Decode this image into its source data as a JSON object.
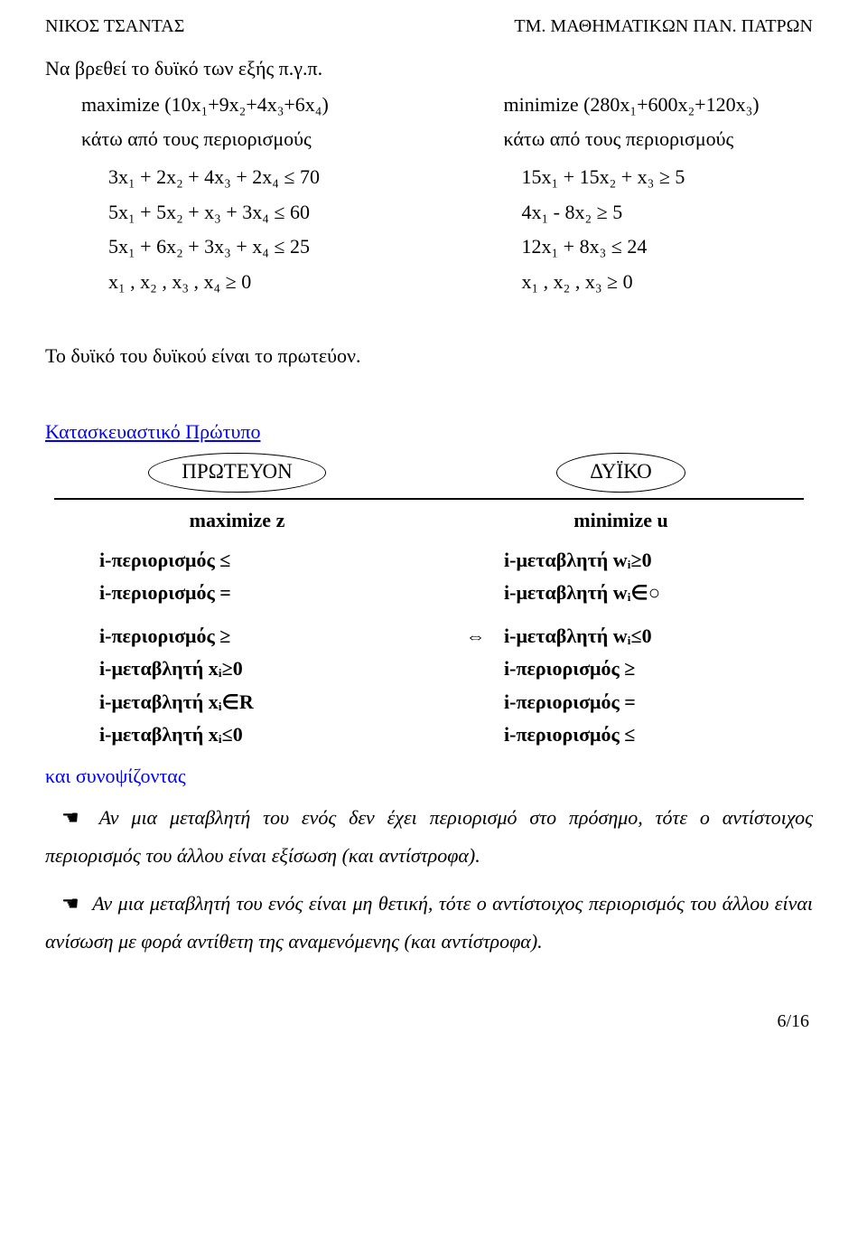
{
  "header": {
    "left": "ΝΙΚΟΣ ΤΣΑΝΤΑΣ",
    "right": "ΤΜ. ΜΑΘΗΜΑΤΙΚΩΝ ΠΑΝ. ΠΑΤΡΩΝ"
  },
  "intro": "Να βρεθεί το δυϊκό των εξής π.γ.π.",
  "primal": {
    "objective": "maximize (10x₁+9x₂+4x₃+6x₄)",
    "sub": "κάτω από τους περιορισμούς",
    "c1": "3x₁ + 2x₂ + 4x₃ + 2x₄ ≤  70",
    "c2": "5x₁ + 5x₂ +   x₃ + 3x₄ ≤  60",
    "c3": "5x₁ + 6x₂ + 3x₃ +   x₄ ≤  25",
    "c4": "  x₁ ,   x₂ ,   x₃ ,   x₄ ≥   0"
  },
  "dual": {
    "objective": "minimize (280x₁+600x₂+120x₃)",
    "sub": "κάτω από τους περιορισμούς",
    "c1": "15x₁ + 15x₂ +   x₃  ≥   5",
    "c2": "  4x₁ -   8x₂           ≥   5",
    "c3": "12x₁ +          8x₃ ≤ 24",
    "c4": "   x₁ ,    x₂ ,    x₃ ≥   0"
  },
  "mid": "Το δυϊκό του δυϊκού είναι το πρωτεύον.",
  "schema": {
    "title": "Κατασκευαστικό Πρώτυπο",
    "left_bubble": "ΠΡΩΤΕΥΟΝ",
    "right_bubble": "ΔΥΪΚΟ",
    "left_opt": "maximize z",
    "right_opt": "minimize u",
    "rows": {
      "l1": "i-περιορισμός ≤",
      "r1": "i-μεταβλητή wᵢ≥0",
      "l2": "i-περιορισμός =",
      "r2": "i-μεταβλητή wᵢ∈○",
      "l3": "i-περιορισμός ≥",
      "m3": "⇔",
      "r3": "i-μεταβλητή wᵢ≤0",
      "l4": "i-μεταβλητή xᵢ≥0",
      "r4": "i-περιορισμός ≥",
      "l5": "i-μεταβλητή xᵢ∈R",
      "r5": "i-περιορισμός =",
      "l6": "i-μεταβλητή xᵢ≤0",
      "r6": "i-περιορισμός ≤"
    }
  },
  "summary": {
    "title": "και συνοψίζοντας",
    "b1": "Αν μια μεταβλητή του ενός δεν έχει περιορισμό στο πρόσημο, τότε ο αντίστοιχος περιορισμός του άλλου είναι εξίσωση (και αντίστροφα).",
    "b2": "Αν μια μεταβλητή του ενός είναι μη θετική, τότε ο αντίστοιχος περιο­ρισμός του άλλου είναι ανίσωση με φορά αντίθετη της αναμενόμενης (και αντίστροφα)."
  },
  "footer": "6/16"
}
